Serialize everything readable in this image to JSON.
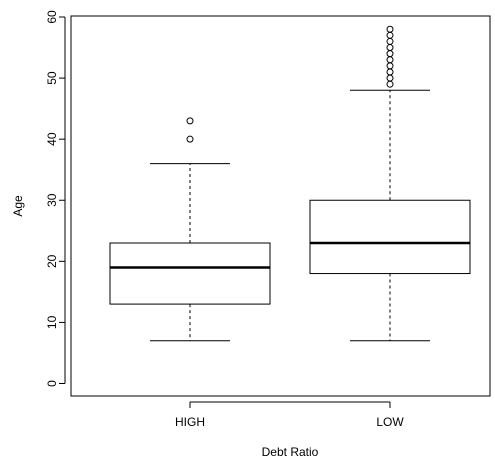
{
  "chart_data": {
    "type": "boxplot",
    "title": "",
    "xlabel": "Debt Ratio",
    "ylabel": "Age",
    "ylim": [
      0,
      60
    ],
    "yticks": [
      0,
      10,
      20,
      30,
      40,
      50,
      60
    ],
    "grid": false,
    "categories": [
      "HIGH",
      "LOW"
    ],
    "boxes": [
      {
        "category": "HIGH",
        "whisker_low": 7,
        "q1": 13,
        "median": 19,
        "q3": 23,
        "whisker_high": 36,
        "outliers": [
          40,
          43
        ]
      },
      {
        "category": "LOW",
        "whisker_low": 7,
        "q1": 18,
        "median": 23,
        "q3": 30,
        "whisker_high": 48,
        "outliers": [
          49,
          50,
          51,
          52,
          53,
          54,
          55,
          56,
          57,
          58
        ]
      }
    ]
  }
}
